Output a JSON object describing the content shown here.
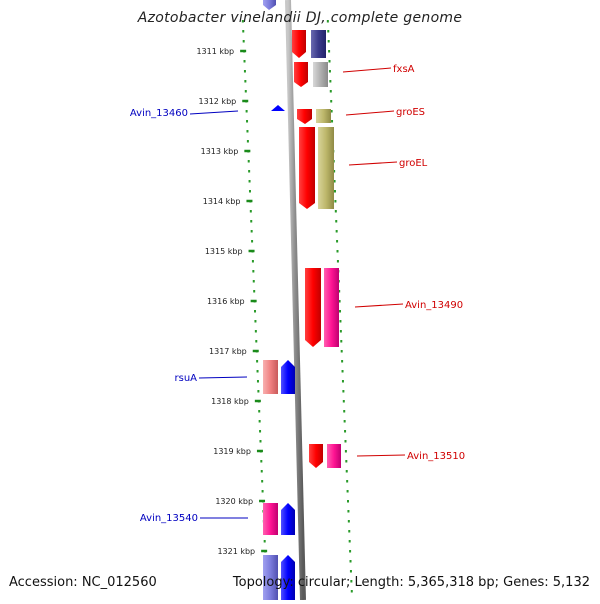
{
  "title": "Azotobacter vinelandii DJ, complete genome",
  "footer": {
    "accession": "Accession: NC_012560",
    "summary": "Topology: circular; Length: 5,365,318 bp; Genes: 5,132"
  },
  "ticks": [
    {
      "label": "1311 kbp",
      "kb": 1311
    },
    {
      "label": "1312 kbp",
      "kb": 1312
    },
    {
      "label": "1313 kbp",
      "kb": 1313
    },
    {
      "label": "1314 kbp",
      "kb": 1314
    },
    {
      "label": "1315 kbp",
      "kb": 1315
    },
    {
      "label": "1316 kbp",
      "kb": 1316
    },
    {
      "label": "1317 kbp",
      "kb": 1317
    },
    {
      "label": "1318 kbp",
      "kb": 1318
    },
    {
      "label": "1319 kbp",
      "kb": 1319
    },
    {
      "label": "1320 kbp",
      "kb": 1320
    },
    {
      "label": "1321 kbp",
      "kb": 1321
    }
  ],
  "gene_labels": {
    "right": [
      {
        "name": "fxsA",
        "color": "#d00000"
      },
      {
        "name": "groES",
        "color": "#d00000"
      },
      {
        "name": "groEL",
        "color": "#d00000"
      },
      {
        "name": "Avin_13490",
        "color": "#d00000"
      },
      {
        "name": "Avin_13510",
        "color": "#d00000"
      }
    ],
    "left": [
      {
        "name": "Avin_13460",
        "color": "#0000c0"
      },
      {
        "name": "rsuA",
        "color": "#0000c0"
      },
      {
        "name": "Avin_13540",
        "color": "#0000c0"
      }
    ]
  },
  "colors": {
    "tick": "#1a8a1a",
    "dots": "#2a9a2a",
    "forward_cds": "#ff0000",
    "reverse_cds": "#0000ff",
    "backbone": "#888888"
  }
}
